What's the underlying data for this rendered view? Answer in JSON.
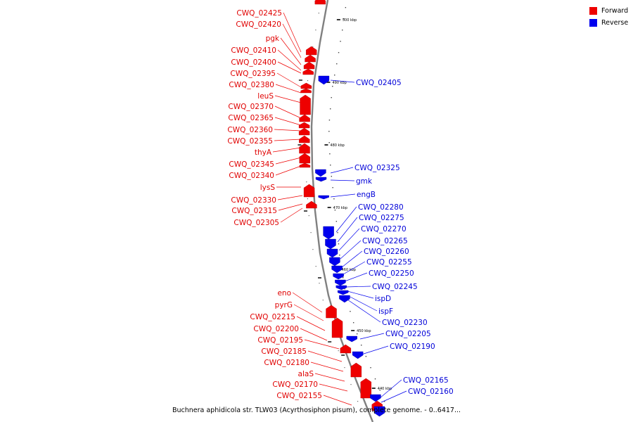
{
  "caption": "Buchnera aphidicola str. TLW03 (Acyrthosiphon pisum), complete genome. - 0..6417...",
  "legend": [
    {
      "label": "Forward",
      "color": "#ee0000"
    },
    {
      "label": "Reverse",
      "color": "#0000ee"
    }
  ],
  "colors": {
    "forward": "#ee0000",
    "reverse": "#0000ee",
    "backbone": "#808080"
  },
  "scale_ticks": [
    "500 kbp",
    "490 kbp",
    "480 kbp",
    "470 kbp",
    "460 kbp",
    "450 kbp",
    "440 kbp"
  ],
  "forward_genes": [
    "CWQ_02425",
    "CWQ_02420",
    "pgk",
    "CWQ_02410",
    "CWQ_02400",
    "CWQ_02395",
    "CWQ_02380",
    "leuS",
    "CWQ_02370",
    "CWQ_02365",
    "CWQ_02360",
    "CWQ_02355",
    "thyA",
    "CWQ_02345",
    "CWQ_02340",
    "lysS",
    "CWQ_02330",
    "CWQ_02315",
    "CWQ_02305",
    "eno",
    "pyrG",
    "CWQ_02215",
    "CWQ_02200",
    "CWQ_02195",
    "CWQ_02185",
    "CWQ_02180",
    "alaS",
    "CWQ_02170",
    "CWQ_02155"
  ],
  "reverse_genes": [
    "CWQ_02405",
    "CWQ_02325",
    "gmk",
    "engB",
    "CWQ_02280",
    "CWQ_02275",
    "CWQ_02270",
    "CWQ_02265",
    "CWQ_02260",
    "CWQ_02255",
    "CWQ_02250",
    "CWQ_02245",
    "ispD",
    "ispF",
    "CWQ_02230",
    "CWQ_02205",
    "CWQ_02190",
    "CWQ_02165",
    "CWQ_02160"
  ]
}
